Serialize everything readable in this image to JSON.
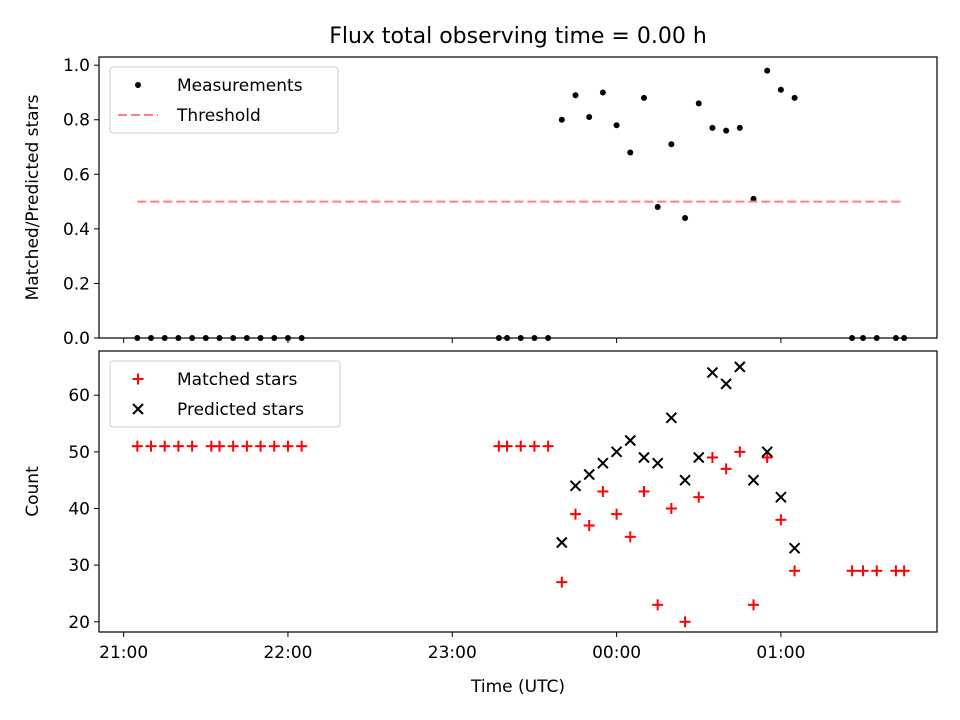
{
  "figure": {
    "title": "Flux total observing time = 0.00 h"
  },
  "chart_data": [
    {
      "type": "scatter",
      "ylabel": "Matched/Predicted stars",
      "xlabel": "",
      "ylim": [
        0,
        1.03
      ],
      "yticks": [
        "0.0",
        "0.2",
        "0.4",
        "0.6",
        "0.8",
        "1.0"
      ],
      "ytick_values": [
        0,
        0.2,
        0.4,
        0.6,
        0.8,
        1.0
      ],
      "xlim_hours": [
        20.85,
        25.95
      ],
      "xticks": [
        "21:00",
        "22:00",
        "23:00",
        "00:00",
        "01:00"
      ],
      "xtick_hours": [
        21,
        22,
        23,
        24,
        25
      ],
      "legend": {
        "placement": "upper-left",
        "entries": [
          "Measurements",
          "Threshold"
        ]
      },
      "series": [
        {
          "name": "Measurements",
          "marker": "dot",
          "color": "#000000",
          "points": [
            [
              "21:05",
              0
            ],
            [
              "21:10",
              0
            ],
            [
              "21:15",
              0
            ],
            [
              "21:20",
              0
            ],
            [
              "21:25",
              0
            ],
            [
              "21:30",
              0
            ],
            [
              "21:35",
              0
            ],
            [
              "21:40",
              0
            ],
            [
              "21:45",
              0
            ],
            [
              "21:50",
              0
            ],
            [
              "21:55",
              0
            ],
            [
              "22:00",
              0
            ],
            [
              "22:05",
              0
            ],
            [
              "23:17",
              0
            ],
            [
              "23:20",
              0
            ],
            [
              "23:25",
              0
            ],
            [
              "23:30",
              0
            ],
            [
              "23:35",
              0
            ],
            [
              "23:40",
              0.8
            ],
            [
              "23:45",
              0.89
            ],
            [
              "23:50",
              0.81
            ],
            [
              "23:55",
              0.9
            ],
            [
              "00:00",
              0.78
            ],
            [
              "00:05",
              0.68
            ],
            [
              "00:10",
              0.88
            ],
            [
              "00:15",
              0.48
            ],
            [
              "00:20",
              0.71
            ],
            [
              "00:25",
              0.44
            ],
            [
              "00:30",
              0.86
            ],
            [
              "00:35",
              0.77
            ],
            [
              "00:40",
              0.76
            ],
            [
              "00:45",
              0.77
            ],
            [
              "00:50",
              0.51
            ],
            [
              "00:55",
              0.98
            ],
            [
              "01:00",
              0.91
            ],
            [
              "01:05",
              0.88
            ],
            [
              "01:26",
              0
            ],
            [
              "01:30",
              0
            ],
            [
              "01:35",
              0
            ],
            [
              "01:42",
              0
            ],
            [
              "01:45",
              0
            ]
          ]
        },
        {
          "name": "Threshold",
          "style": "dashed",
          "color": "#ff7f7f",
          "start": "21:05",
          "end": "01:45",
          "value": 0.5
        }
      ]
    },
    {
      "type": "scatter",
      "ylabel": "Count",
      "xlabel": "Time (UTC)",
      "ylim": [
        18.2,
        67.8
      ],
      "yticks": [
        "20",
        "30",
        "40",
        "50",
        "60"
      ],
      "ytick_values": [
        20,
        30,
        40,
        50,
        60
      ],
      "xlim_hours": [
        20.85,
        25.95
      ],
      "xticks": [
        "21:00",
        "22:00",
        "23:00",
        "00:00",
        "01:00"
      ],
      "xtick_hours": [
        21,
        22,
        23,
        24,
        25
      ],
      "legend": {
        "placement": "upper-left",
        "entries": [
          "Matched stars",
          "Predicted stars"
        ]
      },
      "series": [
        {
          "name": "Matched stars",
          "marker": "plus",
          "color": "#ff0000",
          "points": [
            [
              "21:05",
              51
            ],
            [
              "21:10",
              51
            ],
            [
              "21:15",
              51
            ],
            [
              "21:20",
              51
            ],
            [
              "21:25",
              51
            ],
            [
              "21:32",
              51
            ],
            [
              "21:35",
              51
            ],
            [
              "21:40",
              51
            ],
            [
              "21:45",
              51
            ],
            [
              "21:50",
              51
            ],
            [
              "21:55",
              51
            ],
            [
              "22:00",
              51
            ],
            [
              "22:05",
              51
            ],
            [
              "23:17",
              51
            ],
            [
              "23:20",
              51
            ],
            [
              "23:25",
              51
            ],
            [
              "23:30",
              51
            ],
            [
              "23:35",
              51
            ],
            [
              "23:40",
              27
            ],
            [
              "23:45",
              39
            ],
            [
              "23:50",
              37
            ],
            [
              "23:55",
              43
            ],
            [
              "00:00",
              39
            ],
            [
              "00:05",
              35
            ],
            [
              "00:10",
              43
            ],
            [
              "00:15",
              23
            ],
            [
              "00:20",
              40
            ],
            [
              "00:25",
              20
            ],
            [
              "00:30",
              42
            ],
            [
              "00:35",
              49
            ],
            [
              "00:40",
              47
            ],
            [
              "00:45",
              50
            ],
            [
              "00:50",
              23
            ],
            [
              "00:55",
              49
            ],
            [
              "01:00",
              38
            ],
            [
              "01:05",
              29
            ],
            [
              "01:26",
              29
            ],
            [
              "01:30",
              29
            ],
            [
              "01:35",
              29
            ],
            [
              "01:42",
              29
            ],
            [
              "01:45",
              29
            ]
          ]
        },
        {
          "name": "Predicted stars",
          "marker": "x",
          "color": "#000000",
          "points": [
            [
              "23:40",
              34
            ],
            [
              "23:45",
              44
            ],
            [
              "23:50",
              46
            ],
            [
              "23:55",
              48
            ],
            [
              "00:00",
              50
            ],
            [
              "00:05",
              52
            ],
            [
              "00:10",
              49
            ],
            [
              "00:15",
              48
            ],
            [
              "00:20",
              56
            ],
            [
              "00:25",
              45
            ],
            [
              "00:30",
              49
            ],
            [
              "00:35",
              64
            ],
            [
              "00:40",
              62
            ],
            [
              "00:45",
              65
            ],
            [
              "00:50",
              45
            ],
            [
              "00:55",
              50
            ],
            [
              "01:00",
              42
            ],
            [
              "01:05",
              33
            ]
          ]
        }
      ]
    }
  ]
}
